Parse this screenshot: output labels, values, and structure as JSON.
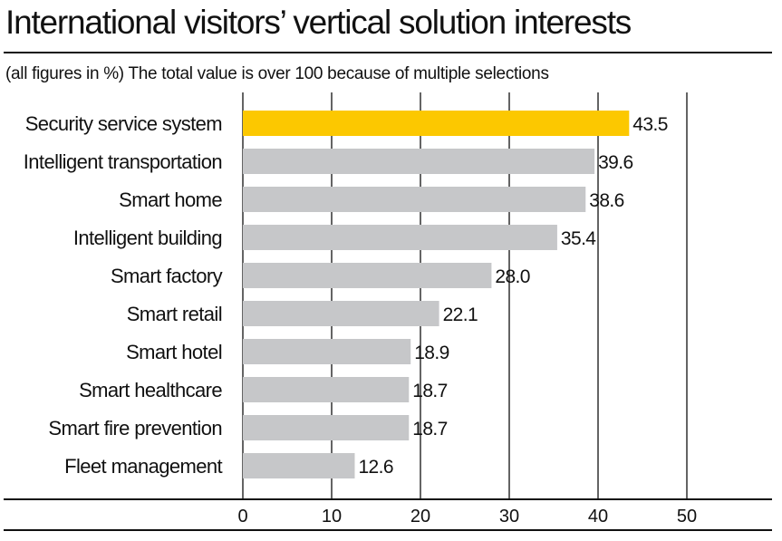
{
  "chart_data": {
    "type": "bar",
    "orientation": "horizontal",
    "title": "International visitors’ vertical solution interests",
    "subtitle": "(all figures in %) The total value is over 100 because of multiple selections",
    "categories": [
      "Security service system",
      "Intelligent transportation",
      "Smart home",
      "Intelligent building",
      "Smart factory",
      "Smart retail",
      "Smart hotel",
      "Smart healthcare",
      "Smart fire prevention",
      "Fleet management"
    ],
    "values": [
      43.5,
      39.6,
      38.6,
      35.4,
      28.0,
      22.1,
      18.9,
      18.7,
      18.7,
      12.6
    ],
    "value_labels": [
      "43.5",
      "39.6",
      "38.6",
      "35.4",
      "28.0",
      "22.1",
      "18.9",
      "18.7",
      "18.7",
      "12.6"
    ],
    "xlim": [
      0,
      50
    ],
    "xticks": [
      0,
      10,
      20,
      30,
      40,
      50
    ],
    "xtick_labels": [
      "0",
      "10",
      "20",
      "30",
      "40",
      "50"
    ],
    "grid": true,
    "highlight_index": 0,
    "colors": {
      "highlight": "#FCC800",
      "bar": "#C6C7C9",
      "text": "#111111",
      "grid": "#111111"
    }
  }
}
